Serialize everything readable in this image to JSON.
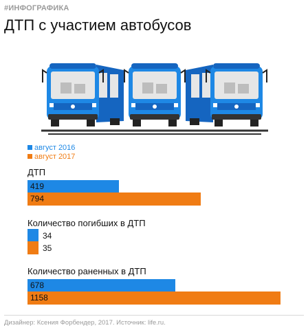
{
  "header": {
    "tag": "#ИНФОГРАФИКА",
    "title": "ДТП с участием автобусов"
  },
  "colors": {
    "series_2016": "#1e88e5",
    "series_2017": "#f07c14"
  },
  "chart_data": {
    "type": "bar",
    "orientation": "horizontal",
    "series": [
      {
        "name": "август 2016"
      },
      {
        "name": "август 2017"
      }
    ],
    "groups": [
      {
        "label": "ДТП",
        "values": [
          419,
          794
        ]
      },
      {
        "label": "Количество погибших в ДТП",
        "values": [
          34,
          35
        ]
      },
      {
        "label": "Количество раненных в ДТП",
        "values": [
          678,
          1158
        ]
      }
    ]
  },
  "footer": {
    "credits": "Дизайнер: Ксения Форбендер, 2017. Источник: life.ru."
  }
}
